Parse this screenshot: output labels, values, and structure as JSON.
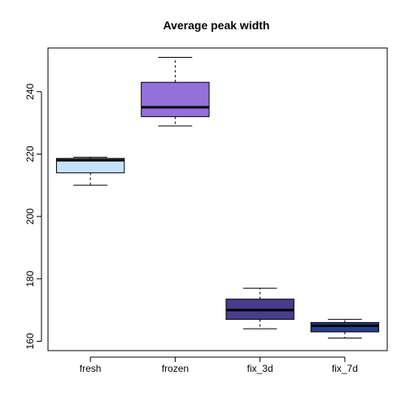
{
  "chart_data": {
    "type": "box",
    "title": "Average peak width",
    "xlabel": "",
    "ylabel": "",
    "categories": [
      "fresh",
      "frozen",
      "fix_3d",
      "fix_7d"
    ],
    "boxes": [
      {
        "category": "fresh",
        "min": 210,
        "q1": 214,
        "median": 218,
        "q3": 218.6,
        "max": 219,
        "color": "#C6E2FF"
      },
      {
        "category": "frozen",
        "min": 229,
        "q1": 232,
        "median": 235,
        "q3": 243,
        "max": 251,
        "color": "#9370DB"
      },
      {
        "category": "fix_3d",
        "min": 164,
        "q1": 167,
        "median": 170,
        "q3": 173.5,
        "max": 177,
        "color": "#483D8B"
      },
      {
        "category": "fix_7d",
        "min": 161,
        "q1": 163,
        "median": 165,
        "q3": 166,
        "max": 167,
        "color": "#27408B"
      }
    ],
    "ylim": [
      157,
      254
    ],
    "yticks": [
      160,
      180,
      200,
      220,
      240
    ],
    "grid": false,
    "legend": "none"
  }
}
